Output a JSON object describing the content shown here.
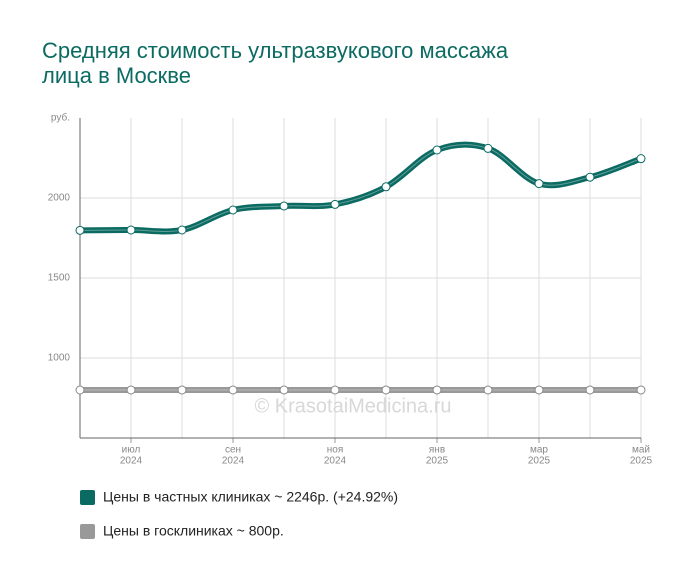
{
  "chart_data": {
    "type": "line",
    "title": [
      "Средняя стоимость ультразвукового массажа",
      "лица в Москве"
    ],
    "categories": [
      null,
      [
        "июл",
        "2024"
      ],
      null,
      [
        "сен",
        "2024"
      ],
      null,
      [
        "ноя",
        "2024"
      ],
      null,
      [
        "янв",
        "2025"
      ],
      null,
      [
        "мар",
        "2025"
      ],
      null,
      [
        "май",
        "2025"
      ]
    ],
    "series": [
      {
        "name": "Цены в частных клиниках ~ 2246р. (+24.92%)",
        "color": "#0b6b62",
        "values": [
          1798,
          1800,
          1800,
          1925,
          1950,
          1960,
          2070,
          2300,
          2310,
          2090,
          2130,
          2246
        ]
      },
      {
        "name": "Цены в госклиниках ~ 800р.",
        "color": "#999999",
        "values": [
          800,
          800,
          800,
          800,
          800,
          800,
          800,
          800,
          800,
          800,
          800,
          800
        ]
      }
    ],
    "ylim": [
      500,
      2500
    ],
    "yticks": [
      1000,
      1500,
      2000,
      {
        "value": 2500,
        "label": "руб."
      }
    ],
    "grid": true,
    "watermark": "© KrasotaiMedicina.ru"
  }
}
